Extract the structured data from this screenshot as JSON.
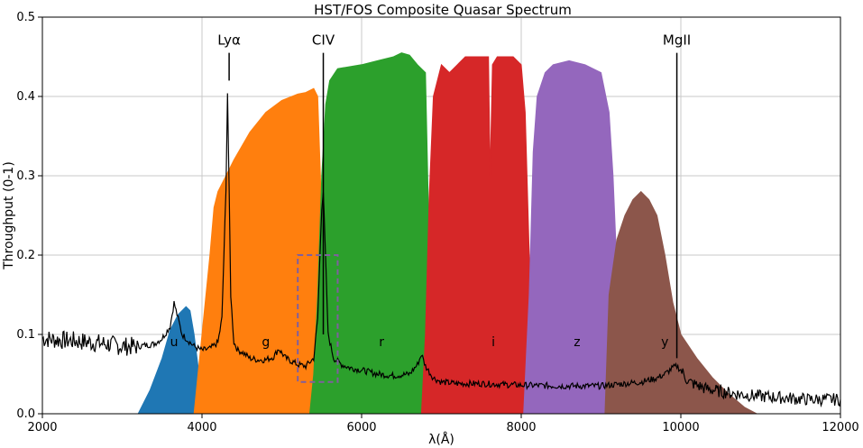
{
  "chart_data": {
    "type": "area",
    "title": "HST/FOS Composite Quasar Spectrum",
    "xlabel": "λ(Å)",
    "ylabel": "Throughput (0-1)",
    "xlim": [
      2000,
      12000
    ],
    "ylim": [
      0.0,
      0.5
    ],
    "grid": true,
    "x_ticks": [
      2000,
      4000,
      6000,
      8000,
      10000,
      12000
    ],
    "x_tick_labels": [
      "2000",
      "4000",
      "6000",
      "8000",
      "10000",
      "12000"
    ],
    "y_ticks": [
      0.0,
      0.1,
      0.2,
      0.3,
      0.4,
      0.5
    ],
    "y_tick_labels": [
      "0.0",
      "0.1",
      "0.2",
      "0.3",
      "0.4",
      "0.5"
    ],
    "bands": [
      {
        "name": "u",
        "color": "#1f77b4",
        "label_x": 3650,
        "label_y": 0.085,
        "x": [
          3200,
          3350,
          3500,
          3600,
          3700,
          3800,
          3850,
          3900,
          3950,
          4000,
          4030
        ],
        "y": [
          0.0,
          0.03,
          0.07,
          0.105,
          0.125,
          0.135,
          0.13,
          0.1,
          0.06,
          0.02,
          0.0
        ]
      },
      {
        "name": "g",
        "color": "#ff7f0e",
        "label_x": 4800,
        "label_y": 0.085,
        "x": [
          3900,
          4000,
          4100,
          4150,
          4200,
          4300,
          4400,
          4600,
          4800,
          5000,
          5200,
          5300,
          5400,
          5450,
          5500,
          5600,
          5700
        ],
        "y": [
          0.0,
          0.1,
          0.2,
          0.26,
          0.28,
          0.3,
          0.32,
          0.355,
          0.38,
          0.395,
          0.403,
          0.405,
          0.41,
          0.4,
          0.25,
          0.05,
          0.0
        ]
      },
      {
        "name": "r",
        "color": "#2ca02c",
        "label_x": 6250,
        "label_y": 0.085,
        "x": [
          5350,
          5400,
          5450,
          5500,
          5550,
          5600,
          5700,
          6000,
          6200,
          6400,
          6500,
          6600,
          6700,
          6800,
          6850,
          6900,
          7000,
          7050
        ],
        "y": [
          0.0,
          0.05,
          0.15,
          0.3,
          0.39,
          0.42,
          0.435,
          0.44,
          0.445,
          0.45,
          0.455,
          0.452,
          0.44,
          0.43,
          0.2,
          0.1,
          0.03,
          0.0
        ]
      },
      {
        "name": "i",
        "color": "#d62728",
        "label_x": 7650,
        "label_y": 0.085,
        "x": [
          6750,
          6800,
          6850,
          6900,
          7000,
          7100,
          7200,
          7300,
          7500,
          7590,
          7610,
          7640,
          7700,
          7900,
          8000,
          8050,
          8100,
          8150,
          8250,
          8330
        ],
        "y": [
          0.0,
          0.1,
          0.28,
          0.4,
          0.44,
          0.43,
          0.44,
          0.45,
          0.45,
          0.45,
          0.3,
          0.44,
          0.45,
          0.45,
          0.44,
          0.38,
          0.2,
          0.08,
          0.02,
          0.0
        ]
      },
      {
        "name": "z",
        "color": "#9467bd",
        "label_x": 8700,
        "label_y": 0.085,
        "x": [
          8030,
          8100,
          8150,
          8200,
          8300,
          8400,
          8600,
          8800,
          9000,
          9100,
          9150,
          9200,
          9250,
          9300,
          9400,
          9500
        ],
        "y": [
          0.0,
          0.15,
          0.33,
          0.4,
          0.43,
          0.44,
          0.445,
          0.44,
          0.43,
          0.38,
          0.3,
          0.18,
          0.08,
          0.04,
          0.01,
          0.0
        ]
      },
      {
        "name": "y",
        "color": "#8c564b",
        "label_x": 9800,
        "label_y": 0.085,
        "x": [
          9050,
          9100,
          9200,
          9300,
          9400,
          9500,
          9600,
          9700,
          9800,
          9900,
          10000,
          10200,
          10400,
          10600,
          10800,
          10950
        ],
        "y": [
          0.0,
          0.15,
          0.22,
          0.25,
          0.27,
          0.28,
          0.27,
          0.25,
          0.2,
          0.14,
          0.1,
          0.07,
          0.045,
          0.025,
          0.008,
          0.0
        ]
      }
    ],
    "spectrum": {
      "color": "#000000",
      "x": [
        2000,
        2200,
        2400,
        2600,
        2800,
        3000,
        3200,
        3400,
        3500,
        3600,
        3650,
        3700,
        3750,
        3800,
        3900,
        4000,
        4100,
        4200,
        4250,
        4300,
        4320,
        4340,
        4360,
        4400,
        4450,
        4500,
        4600,
        4700,
        4800,
        4900,
        4960,
        5050,
        5200,
        5300,
        5400,
        5450,
        5500,
        5520,
        5540,
        5580,
        5650,
        5750,
        5850,
        6000,
        6200,
        6400,
        6600,
        6700,
        6750,
        6800,
        6900,
        7000,
        7200,
        7500,
        8000,
        8500,
        9000,
        9300,
        9500,
        9700,
        9800,
        9900,
        9950,
        10000,
        10100,
        10300,
        10500,
        10700,
        11000,
        11300,
        11600,
        12000
      ],
      "y": [
        0.095,
        0.093,
        0.092,
        0.09,
        0.088,
        0.085,
        0.085,
        0.088,
        0.095,
        0.11,
        0.14,
        0.12,
        0.1,
        0.095,
        0.085,
        0.08,
        0.082,
        0.09,
        0.12,
        0.28,
        0.405,
        0.28,
        0.15,
        0.09,
        0.08,
        0.078,
        0.07,
        0.068,
        0.068,
        0.072,
        0.082,
        0.07,
        0.062,
        0.06,
        0.07,
        0.12,
        0.26,
        0.28,
        0.22,
        0.1,
        0.07,
        0.062,
        0.058,
        0.055,
        0.05,
        0.048,
        0.05,
        0.062,
        0.075,
        0.06,
        0.045,
        0.04,
        0.038,
        0.038,
        0.036,
        0.035,
        0.035,
        0.038,
        0.04,
        0.045,
        0.05,
        0.058,
        0.06,
        0.055,
        0.04,
        0.032,
        0.028,
        0.025,
        0.022,
        0.02,
        0.018,
        0.018
      ]
    },
    "emission_lines": [
      {
        "name": "Lyα",
        "x": 4340,
        "y_top": 0.455,
        "y_bottom": 0.42
      },
      {
        "name": "CIV",
        "x": 5520,
        "y_top": 0.455,
        "y_bottom": 0.1
      },
      {
        "name": "MgII",
        "x": 9950,
        "y_top": 0.455,
        "y_bottom": 0.07
      }
    ],
    "highlight_box": {
      "x0": 5200,
      "x1": 5700,
      "y0": 0.04,
      "y1": 0.2,
      "color": "#7f5f9f",
      "style": "dashed"
    }
  }
}
